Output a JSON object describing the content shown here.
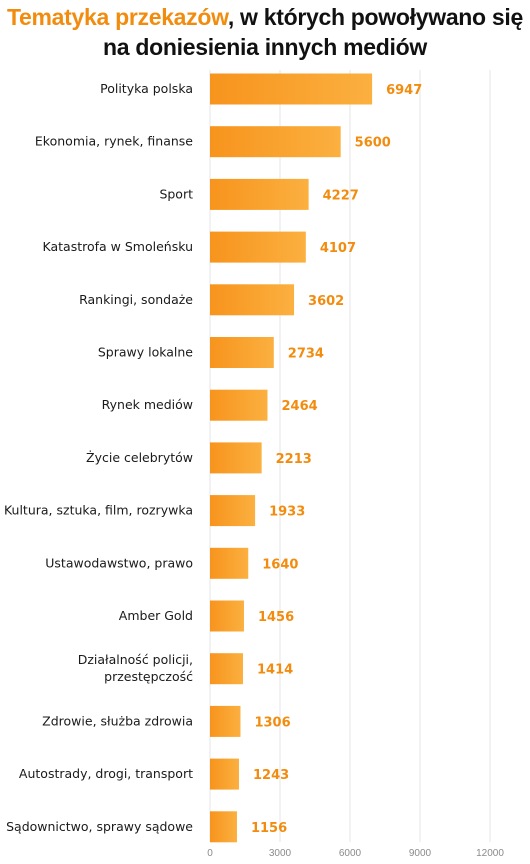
{
  "title": {
    "accent": "Tematyka przekazów",
    "rest_line1": ", w których powoływano się",
    "line2": "na doniesienia innych mediów"
  },
  "colors": {
    "accent": "#f28c0f",
    "bar_dark": "#f7941d",
    "bar_light": "#fbb040",
    "grid": "#e6e6e6"
  },
  "chart_data": {
    "type": "bar",
    "orientation": "horizontal",
    "title": "Tematyka przekazów, w których powoływano się na doniesienia innych mediów",
    "categories": [
      "Polityka polska",
      "Ekonomia, rynek, finanse",
      "Sport",
      "Katastrofa w Smoleńsku",
      "Rankingi, sondaże",
      "Sprawy lokalne",
      "Rynek mediów",
      "Życie celebrytów",
      "Kultura, sztuka, film, rozrywka",
      "Ustawodawstwo, prawo",
      "Amber Gold",
      "Działalność policji, przestępczość",
      "Zdrowie, służba zdrowia",
      "Autostrady, drogi, transport",
      "Sądownictwo, sprawy sądowe"
    ],
    "category_lines": [
      [
        "Polityka polska"
      ],
      [
        "Ekonomia, rynek, finanse"
      ],
      [
        "Sport"
      ],
      [
        "Katastrofa w Smoleńsku"
      ],
      [
        "Rankingi, sondaże"
      ],
      [
        "Sprawy lokalne"
      ],
      [
        "Rynek mediów"
      ],
      [
        "Życie celebrytów"
      ],
      [
        "Kultura, sztuka, film, rozrywka"
      ],
      [
        "Ustawodawstwo, prawo"
      ],
      [
        "Amber Gold"
      ],
      [
        "Działalność policji,",
        "przestępczość"
      ],
      [
        "Zdrowie, służba zdrowia"
      ],
      [
        "Autostrady, drogi, transport"
      ],
      [
        "Sądownictwo, sprawy sądowe"
      ]
    ],
    "values": [
      6947,
      5600,
      4227,
      4107,
      3602,
      2734,
      2464,
      2213,
      1933,
      1640,
      1456,
      1414,
      1306,
      1243,
      1156
    ],
    "xticks": [
      0,
      3000,
      6000,
      9000,
      12000
    ],
    "xlim": [
      0,
      12000
    ],
    "grid": true,
    "data_labels": true,
    "legend": "none"
  }
}
